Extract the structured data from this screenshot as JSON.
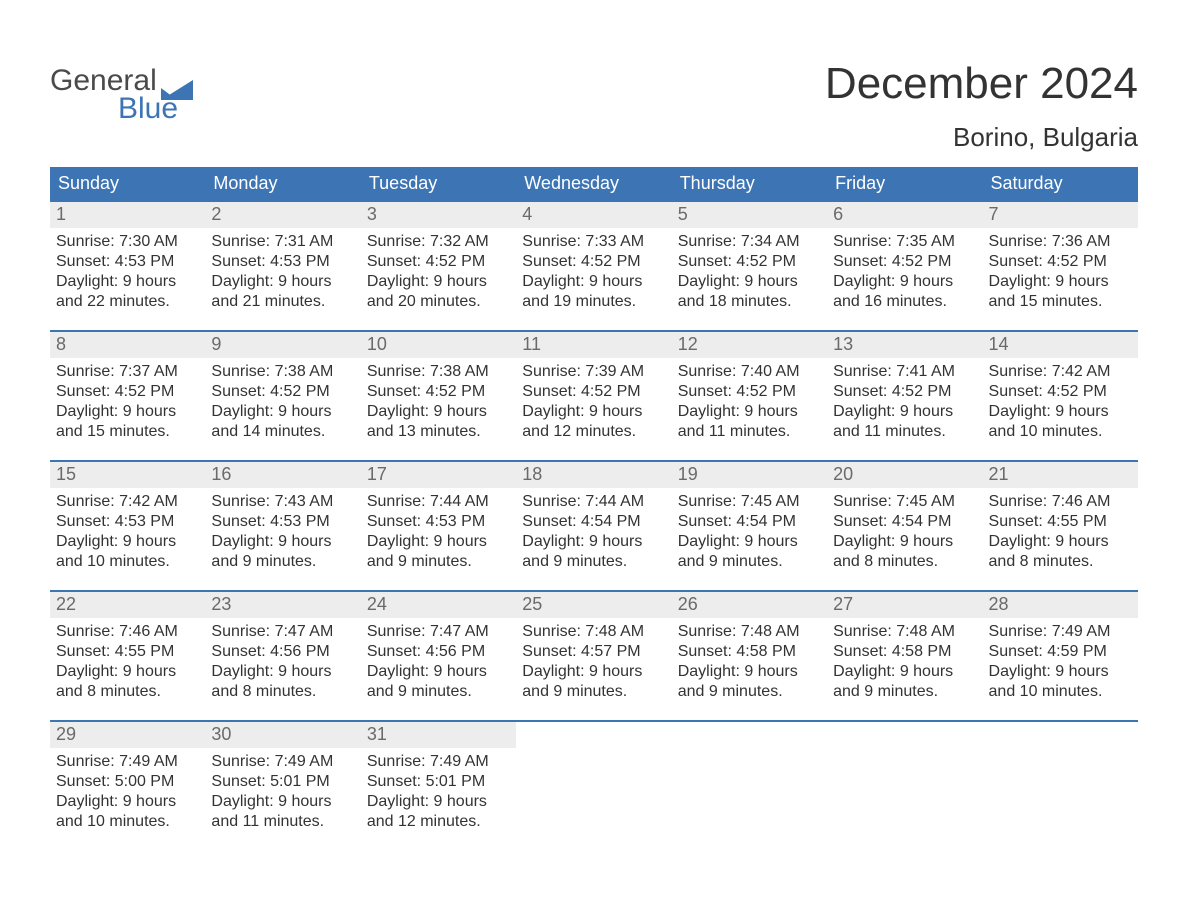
{
  "brand": {
    "word1": "General",
    "word2": "Blue",
    "word1_color": "#4a4a4a",
    "word2_color": "#3d74b4",
    "flag_color": "#3d74b4"
  },
  "header": {
    "month_title": "December 2024",
    "location": "Borino, Bulgaria"
  },
  "styling": {
    "header_bg": "#3d74b4",
    "header_text": "#ffffff",
    "row_divider": "#3d74b4",
    "daynum_bg": "#ededed",
    "daynum_text": "#6a6a6a",
    "body_text": "#333333",
    "page_bg": "#ffffff",
    "header_font_size_pt": 14,
    "body_font_size_pt": 12,
    "title_font_size_pt": 33,
    "subtitle_font_size_pt": 20,
    "columns": 7,
    "rows": 5
  },
  "day_headers": [
    "Sunday",
    "Monday",
    "Tuesday",
    "Wednesday",
    "Thursday",
    "Friday",
    "Saturday"
  ],
  "labels": {
    "sunrise": "Sunrise:",
    "sunset": "Sunset:",
    "daylight_prefix": "Daylight:"
  },
  "days": [
    {
      "n": 1,
      "sunrise": "7:30 AM",
      "sunset": "4:53 PM",
      "daylight": "9 hours and 22 minutes."
    },
    {
      "n": 2,
      "sunrise": "7:31 AM",
      "sunset": "4:53 PM",
      "daylight": "9 hours and 21 minutes."
    },
    {
      "n": 3,
      "sunrise": "7:32 AM",
      "sunset": "4:52 PM",
      "daylight": "9 hours and 20 minutes."
    },
    {
      "n": 4,
      "sunrise": "7:33 AM",
      "sunset": "4:52 PM",
      "daylight": "9 hours and 19 minutes."
    },
    {
      "n": 5,
      "sunrise": "7:34 AM",
      "sunset": "4:52 PM",
      "daylight": "9 hours and 18 minutes."
    },
    {
      "n": 6,
      "sunrise": "7:35 AM",
      "sunset": "4:52 PM",
      "daylight": "9 hours and 16 minutes."
    },
    {
      "n": 7,
      "sunrise": "7:36 AM",
      "sunset": "4:52 PM",
      "daylight": "9 hours and 15 minutes."
    },
    {
      "n": 8,
      "sunrise": "7:37 AM",
      "sunset": "4:52 PM",
      "daylight": "9 hours and 15 minutes."
    },
    {
      "n": 9,
      "sunrise": "7:38 AM",
      "sunset": "4:52 PM",
      "daylight": "9 hours and 14 minutes."
    },
    {
      "n": 10,
      "sunrise": "7:38 AM",
      "sunset": "4:52 PM",
      "daylight": "9 hours and 13 minutes."
    },
    {
      "n": 11,
      "sunrise": "7:39 AM",
      "sunset": "4:52 PM",
      "daylight": "9 hours and 12 minutes."
    },
    {
      "n": 12,
      "sunrise": "7:40 AM",
      "sunset": "4:52 PM",
      "daylight": "9 hours and 11 minutes."
    },
    {
      "n": 13,
      "sunrise": "7:41 AM",
      "sunset": "4:52 PM",
      "daylight": "9 hours and 11 minutes."
    },
    {
      "n": 14,
      "sunrise": "7:42 AM",
      "sunset": "4:52 PM",
      "daylight": "9 hours and 10 minutes."
    },
    {
      "n": 15,
      "sunrise": "7:42 AM",
      "sunset": "4:53 PM",
      "daylight": "9 hours and 10 minutes."
    },
    {
      "n": 16,
      "sunrise": "7:43 AM",
      "sunset": "4:53 PM",
      "daylight": "9 hours and 9 minutes."
    },
    {
      "n": 17,
      "sunrise": "7:44 AM",
      "sunset": "4:53 PM",
      "daylight": "9 hours and 9 minutes."
    },
    {
      "n": 18,
      "sunrise": "7:44 AM",
      "sunset": "4:54 PM",
      "daylight": "9 hours and 9 minutes."
    },
    {
      "n": 19,
      "sunrise": "7:45 AM",
      "sunset": "4:54 PM",
      "daylight": "9 hours and 9 minutes."
    },
    {
      "n": 20,
      "sunrise": "7:45 AM",
      "sunset": "4:54 PM",
      "daylight": "9 hours and 8 minutes."
    },
    {
      "n": 21,
      "sunrise": "7:46 AM",
      "sunset": "4:55 PM",
      "daylight": "9 hours and 8 minutes."
    },
    {
      "n": 22,
      "sunrise": "7:46 AM",
      "sunset": "4:55 PM",
      "daylight": "9 hours and 8 minutes."
    },
    {
      "n": 23,
      "sunrise": "7:47 AM",
      "sunset": "4:56 PM",
      "daylight": "9 hours and 8 minutes."
    },
    {
      "n": 24,
      "sunrise": "7:47 AM",
      "sunset": "4:56 PM",
      "daylight": "9 hours and 9 minutes."
    },
    {
      "n": 25,
      "sunrise": "7:48 AM",
      "sunset": "4:57 PM",
      "daylight": "9 hours and 9 minutes."
    },
    {
      "n": 26,
      "sunrise": "7:48 AM",
      "sunset": "4:58 PM",
      "daylight": "9 hours and 9 minutes."
    },
    {
      "n": 27,
      "sunrise": "7:48 AM",
      "sunset": "4:58 PM",
      "daylight": "9 hours and 9 minutes."
    },
    {
      "n": 28,
      "sunrise": "7:49 AM",
      "sunset": "4:59 PM",
      "daylight": "9 hours and 10 minutes."
    },
    {
      "n": 29,
      "sunrise": "7:49 AM",
      "sunset": "5:00 PM",
      "daylight": "9 hours and 10 minutes."
    },
    {
      "n": 30,
      "sunrise": "7:49 AM",
      "sunset": "5:01 PM",
      "daylight": "9 hours and 11 minutes."
    },
    {
      "n": 31,
      "sunrise": "7:49 AM",
      "sunset": "5:01 PM",
      "daylight": "9 hours and 12 minutes."
    }
  ],
  "trailing_blanks": 4
}
